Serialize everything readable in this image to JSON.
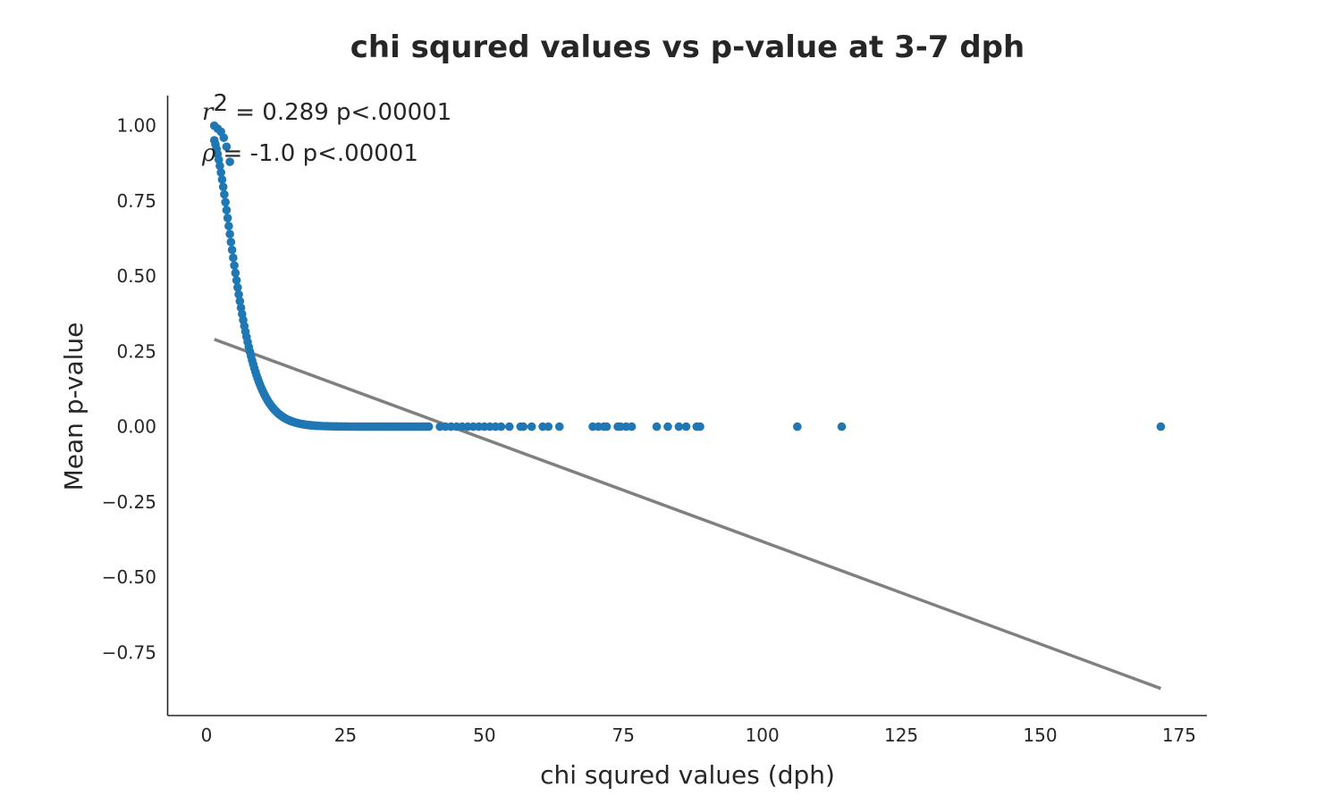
{
  "chart_data": {
    "type": "scatter",
    "title": "chi squred values vs p-value at 3-7 dph",
    "xlabel": "chi squred values (dph)",
    "ylabel": "Mean p-value",
    "xlim": [
      -7,
      180
    ],
    "ylim": [
      -0.96,
      1.1
    ],
    "x_ticks": [
      0,
      25,
      50,
      75,
      100,
      125,
      150,
      175
    ],
    "x_tick_labels": [
      "0",
      "25",
      "50",
      "75",
      "100",
      "125",
      "150",
      "175"
    ],
    "y_ticks": [
      1.0,
      0.75,
      0.5,
      0.25,
      0.0,
      -0.25,
      -0.5,
      -0.75
    ],
    "y_tick_labels": [
      "1.00",
      "0.75",
      "0.50",
      "0.25",
      "0.00",
      "−0.25",
      "−0.50",
      "−0.75"
    ],
    "grid": false,
    "series": [
      {
        "kind": "scatter",
        "color": "#1f77b4",
        "curve": "chi2-survival-df5",
        "curve_x_range": [
          1.4,
          40
        ],
        "points": [
          {
            "x": 1.4,
            "y": 1.0
          },
          {
            "x": 2.0,
            "y": 0.99
          },
          {
            "x": 2.6,
            "y": 0.98
          },
          {
            "x": 3.1,
            "y": 0.96
          },
          {
            "x": 3.6,
            "y": 0.93
          },
          {
            "x": 4.2,
            "y": 0.88
          },
          {
            "x": 42,
            "y": 0.0
          },
          {
            "x": 43,
            "y": 0.0
          },
          {
            "x": 44,
            "y": 0.0
          },
          {
            "x": 45,
            "y": 0.0
          },
          {
            "x": 46,
            "y": 0.0
          },
          {
            "x": 47,
            "y": 0.0
          },
          {
            "x": 48,
            "y": 0.0
          },
          {
            "x": 49,
            "y": 0.0
          },
          {
            "x": 50,
            "y": 0.0
          },
          {
            "x": 51,
            "y": 0.0
          },
          {
            "x": 52,
            "y": 0.0
          },
          {
            "x": 53,
            "y": 0.0
          },
          {
            "x": 54.5,
            "y": 0.0
          },
          {
            "x": 56.5,
            "y": 0.0
          },
          {
            "x": 57,
            "y": 0.0
          },
          {
            "x": 58.5,
            "y": 0.0
          },
          {
            "x": 60.5,
            "y": 0.0
          },
          {
            "x": 61.5,
            "y": 0.0
          },
          {
            "x": 63.5,
            "y": 0.0
          },
          {
            "x": 69.5,
            "y": 0.0
          },
          {
            "x": 70.5,
            "y": 0.0
          },
          {
            "x": 71.5,
            "y": 0.0
          },
          {
            "x": 72,
            "y": 0.0
          },
          {
            "x": 74,
            "y": 0.0
          },
          {
            "x": 74.5,
            "y": 0.0
          },
          {
            "x": 75.5,
            "y": 0.0
          },
          {
            "x": 76.5,
            "y": 0.0
          },
          {
            "x": 81,
            "y": 0.0
          },
          {
            "x": 83,
            "y": 0.0
          },
          {
            "x": 85,
            "y": 0.0
          },
          {
            "x": 86.3,
            "y": 0.0
          },
          {
            "x": 88.2,
            "y": 0.0
          },
          {
            "x": 88.8,
            "y": 0.0
          },
          {
            "x": 106.3,
            "y": 0.0
          },
          {
            "x": 114.3,
            "y": 0.0
          },
          {
            "x": 171.7,
            "y": 0.0
          }
        ]
      },
      {
        "kind": "line",
        "color": "#808080",
        "points": [
          {
            "x": 1.4,
            "y": 0.29
          },
          {
            "x": 171.7,
            "y": -0.87
          }
        ]
      }
    ],
    "annotations": [
      {
        "symbol": "r",
        "superscript": "2",
        "text": " = 0.289 p<.00001"
      },
      {
        "symbol": "ρ",
        "text": " = -1.0 p<.00001"
      }
    ]
  }
}
